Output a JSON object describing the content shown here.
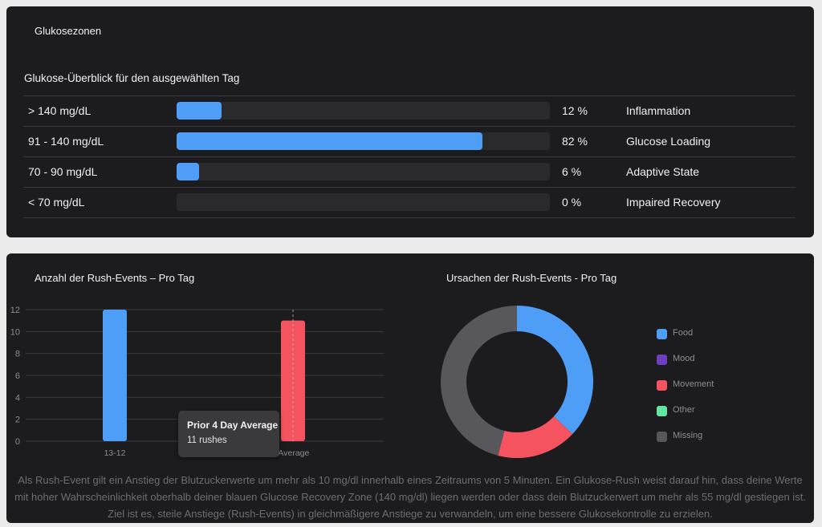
{
  "zones_card": {
    "title": "Glukosezonen",
    "overview_title": "Glukose-Überblick für den ausgewählten Tag",
    "rows": [
      {
        "range": "> 140 mg/dL",
        "percent_value": 12,
        "percent_label": "12 %",
        "label": "Inflammation"
      },
      {
        "range": "91 - 140 mg/dL",
        "percent_value": 82,
        "percent_label": "82 %",
        "label": "Glucose Loading"
      },
      {
        "range": "70 - 90 mg/dL",
        "percent_value": 6,
        "percent_label": "6 %",
        "label": "Adaptive State"
      },
      {
        "range": "< 70 mg/dL",
        "percent_value": 0,
        "percent_label": "0 %",
        "label": "Impaired Recovery"
      }
    ],
    "bar_color": "#4e9ef8"
  },
  "rush_card": {
    "footnote": "Als Rush-Event gilt ein Anstieg der Blutzuckerwerte um mehr als 10 mg/dl innerhalb eines Zeitraums von 5 Minuten. Ein Glukose-Rush weist darauf hin, dass deine Werte mit hoher Wahrscheinlichkeit oberhalb deiner blauen Glucose Recovery Zone (140 mg/dl) liegen werden oder dass dein Blutzuckerwert um mehr als 55 mg/dl gestiegen ist. Ziel ist es, steile Anstiege (Rush-Events) in gleichmäßigere Anstiege zu verwandeln, um eine bessere Glukosekontrolle zu erzielen.",
    "tooltip": {
      "title": "Prior 4 Day Average",
      "value": "11 rushes"
    }
  },
  "chart_data": [
    {
      "type": "bar",
      "title": "Anzahl der Rush-Events – Pro Tag",
      "categories": [
        "13-12",
        "Prior 4 Day Average"
      ],
      "tick_labels_visible": [
        "13-12",
        "‡ Day Average"
      ],
      "values": [
        12,
        11
      ],
      "colors": [
        "#4e9ef8",
        "#f5535f"
      ],
      "yticks": [
        0,
        2,
        4,
        6,
        8,
        10,
        12
      ],
      "ylim": [
        0,
        12
      ],
      "grid": true
    },
    {
      "type": "pie",
      "title": "Ursachen der Rush-Events - Pro Tag",
      "labels": [
        "Food",
        "Mood",
        "Movement",
        "Other",
        "Missing"
      ],
      "values": [
        37,
        0,
        17,
        0,
        46
      ],
      "colors": [
        "#4e9ef8",
        "#6f3fc1",
        "#f5535f",
        "#63e6a0",
        "#58585c"
      ],
      "legend_position": "right"
    }
  ]
}
